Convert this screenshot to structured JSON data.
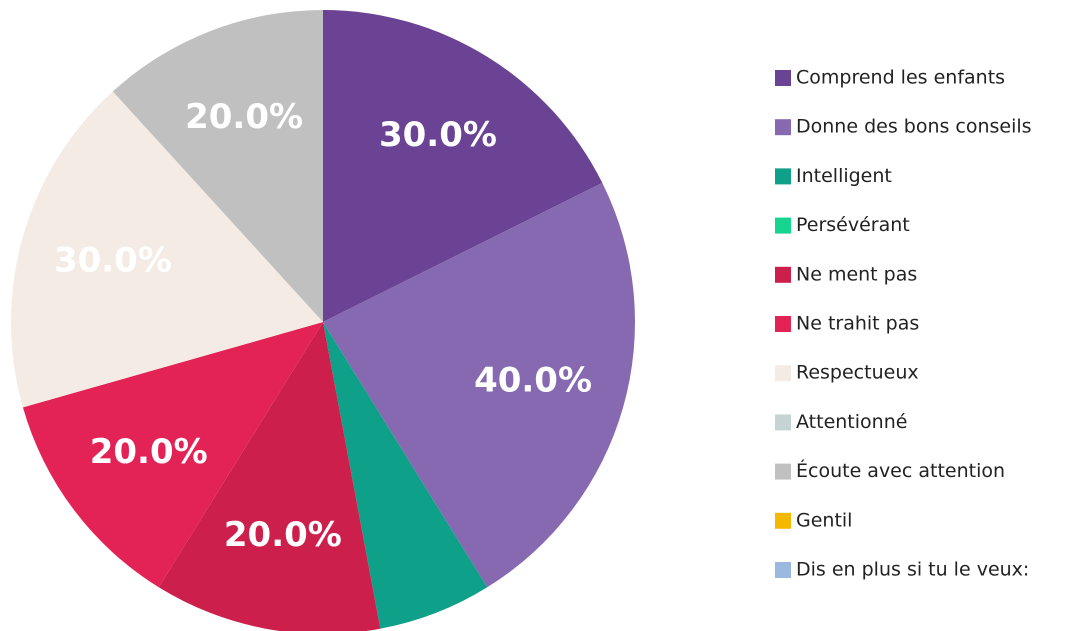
{
  "chart_data": {
    "type": "pie",
    "categories": [
      "Comprend les enfants",
      "Donne des bons conseils",
      "Intelligent",
      "Persévérant",
      "Ne ment pas",
      "Ne trahit pas",
      "Respectueux",
      "Attentionné",
      "Écoute avec attention",
      "Gentil",
      "Dis en plus si tu le veux:"
    ],
    "values": [
      30,
      40,
      10,
      0,
      20,
      20,
      30,
      0,
      20,
      0,
      0
    ],
    "value_labels": [
      "30.0%",
      "40.0%",
      null,
      null,
      "20.0%",
      "20.0%",
      "30.0%",
      null,
      "20.0%",
      null,
      null
    ],
    "colors": [
      "#6a4395",
      "#8669b1",
      "#0ea089",
      "#16d68f",
      "#cc1f4b",
      "#e32356",
      "#f4ebe4",
      "#c5d3d4",
      "#c0c0c0",
      "#f5b800",
      "#9ab8e0"
    ],
    "legend": "right"
  }
}
